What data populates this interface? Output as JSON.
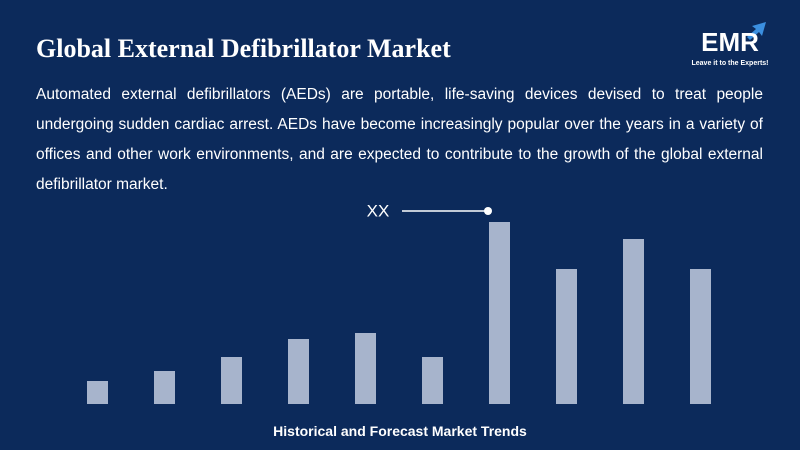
{
  "title": "Global External Defibrillator Market",
  "description": "Automated external defibrillators (AEDs) are portable, life-saving devices devised to treat people undergoing sudden cardiac arrest. AEDs have become increasingly popular over the years in a variety of offices and other work environments, and are expected to contribute to the growth of the global external defibrillator market.",
  "logo": {
    "name": "EMR",
    "tagline": "Leave it to the Experts!"
  },
  "chart_data": {
    "type": "bar",
    "categories": [
      null,
      null,
      null,
      null,
      null,
      null,
      null,
      null,
      null,
      null
    ],
    "values": [
      23,
      33,
      47,
      65,
      71,
      47,
      182,
      135,
      165,
      135
    ],
    "color": "#a7b4cc",
    "ylim": [
      0,
      200
    ],
    "annotation": "XX",
    "footer": "Historical and Forecast Market Trends"
  }
}
